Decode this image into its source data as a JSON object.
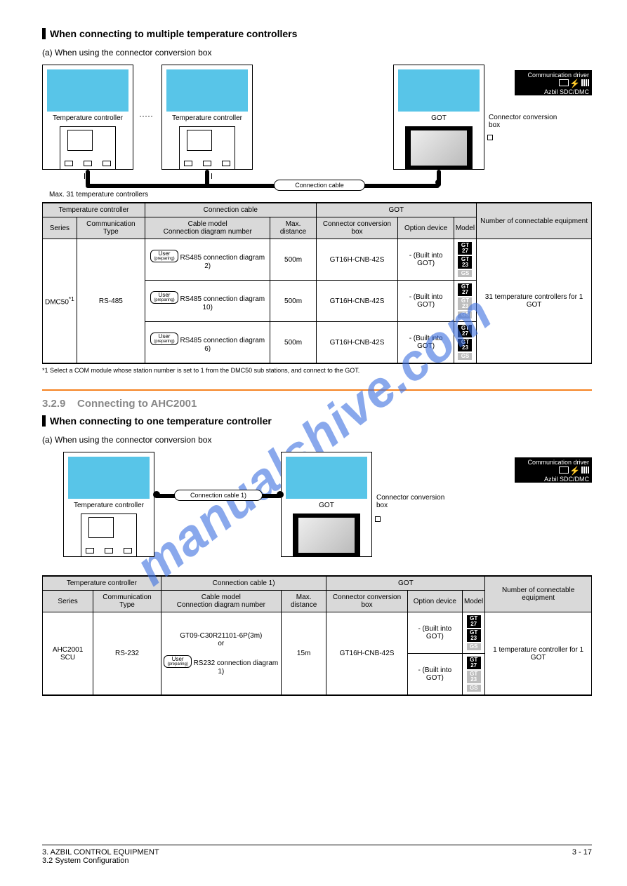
{
  "watermark": "manualshive.com",
  "sec1": {
    "heading": "When connecting to multiple temperature controllers",
    "sub": "(a) When using the connector conversion box",
    "diagram": {
      "ctrl_label": "Temperature controller",
      "got_label": "GOT",
      "conn_box_label": "Connector conversion box",
      "max_label": "Max. 31 temperature controllers",
      "cable_label": "Connection cable",
      "comm_title": "Communication driver",
      "comm_name": "Azbil SDC/DMC"
    },
    "table": {
      "headers": {
        "tc": "Temperature controller",
        "cc": "Connection cable",
        "got": "GOT",
        "n": "Number of connectable equipment",
        "series": "Series",
        "comm": "Communication Type",
        "cab_h": "Cable model\nConnection diagram number",
        "dist": "Max. distance",
        "ccb": "Connector conversion box",
        "opt": "Option device",
        "model": "Model"
      },
      "series_val": "DMC50",
      "comm_val": "RS-485",
      "n_val": "31 temperature controllers for 1 GOT",
      "rows": [
        {
          "cab_prefix": "RS485 connection diagram 2)",
          "dist": "500m",
          "ccb": "GT16H-CNB-42S",
          "opt": "- (Built into GOT)",
          "chips": [
            "GT\n27",
            "GT\n23",
            "GS"
          ],
          "chip_state": [
            "on",
            "on",
            "off"
          ]
        },
        {
          "cab_prefix": "RS485 connection diagram 10)",
          "dist": "500m",
          "ccb": "GT16H-CNB-42S",
          "opt": "- (Built into GOT)",
          "chips": [
            "GT\n27",
            "GT\n23",
            "GS"
          ],
          "chip_state": [
            "on",
            "off",
            "off"
          ]
        },
        {
          "cab_prefix": "RS485 connection diagram 6)",
          "dist": "500m",
          "ccb": "GT16H-CNB-42S",
          "opt": "- (Built into GOT)",
          "chips": [
            "GT\n27",
            "GT\n23",
            "GS"
          ],
          "chip_state": [
            "on",
            "on",
            "off"
          ]
        }
      ],
      "foot": "*1    Select a COM module whose station number is set to 1 from the DMC50 sub stations, and connect to the GOT."
    }
  },
  "sec2": {
    "title": "3.2.9",
    "title_text": "Connecting to AHC2001",
    "heading": "When connecting to one temperature controller",
    "sub": "(a) When using the connector conversion box",
    "diagram": {
      "ctrl_label": "Temperature controller",
      "got_label": "GOT",
      "conn_box_label": "Connector conversion box",
      "cable_label": "Connection cable 1)",
      "comm_title": "Communication driver",
      "comm_name": "Azbil SDC/DMC"
    },
    "table": {
      "headers": {
        "tc": "Temperature controller",
        "cc": "Connection cable 1)",
        "got": "GOT",
        "n": "Number of connectable equipment",
        "series": "Series",
        "comm": "Communication Type",
        "cab_h": "Cable model\nConnection diagram number",
        "dist": "Max. distance",
        "ccb": "Connector conversion box",
        "opt": "Option device",
        "model": "Model"
      },
      "series_val": "AHC2001 SCU",
      "comm_val": "RS-232",
      "cab_val": "GT09-C30R21101-6P(3m)\nor\nRS232 connection diagram 1)",
      "dist_val": "15m",
      "ccb_val": "GT16H-CNB-42S",
      "n_val": "1 temperature controller for 1 GOT",
      "rows": [
        {
          "opt": "- (Built into GOT)",
          "chips": [
            "GT\n27",
            "GT\n23",
            "GS"
          ],
          "chip_state": [
            "on",
            "on",
            "off"
          ]
        },
        {
          "opt": "- (Built into GOT)",
          "chips": [
            "GT\n27",
            "GT\n23",
            "GS"
          ],
          "chip_state": [
            "on",
            "off",
            "off"
          ]
        }
      ]
    }
  },
  "footer": {
    "l1": "3. AZBIL CONTROL EQUIPMENT",
    "l2": "3.2 System Configuration",
    "page": "3 - 17"
  }
}
